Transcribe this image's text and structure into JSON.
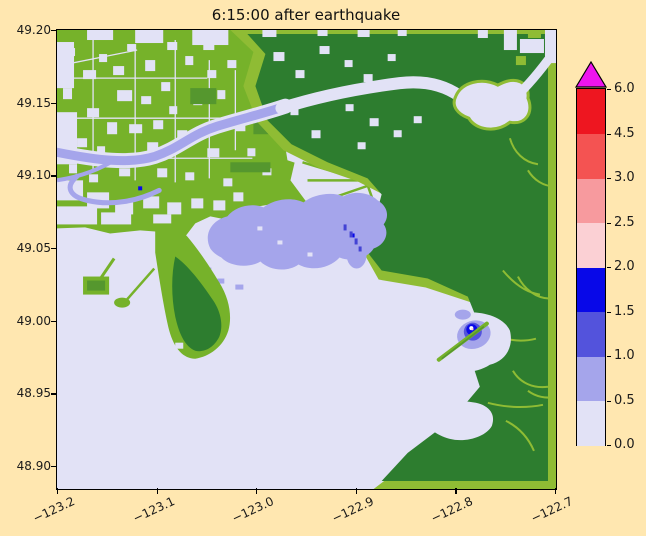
{
  "figure": {
    "title": "6:15:00 after earthquake",
    "background_color": "#ffe7b0"
  },
  "chart_data": {
    "type": "heatmap",
    "title": "6:15:00 after earthquake",
    "xlabel": "",
    "ylabel": "",
    "grid": false,
    "xlim": [
      -123.2,
      -122.7
    ],
    "ylim": [
      48.885,
      49.2
    ],
    "x_ticks": {
      "values": [
        -123.2,
        -123.1,
        -123.0,
        -122.9,
        -122.8,
        -122.7
      ],
      "labels": [
        "−123.2",
        "−123.1",
        "−123.0",
        "−122.9",
        "−122.8",
        "−122.7"
      ]
    },
    "y_ticks": {
      "values": [
        49.2,
        49.15,
        49.1,
        49.05,
        49.0,
        48.95,
        48.9
      ],
      "labels": [
        "49.20",
        "49.15",
        "49.10",
        "49.05",
        "49.00",
        "48.95",
        "48.90"
      ]
    },
    "colorbar": {
      "orientation": "vertical",
      "position": "right",
      "extend": "max",
      "boundaries": [
        0.0,
        0.5,
        1.0,
        1.5,
        2.0,
        2.5,
        3.0,
        4.5,
        6.0
      ],
      "tick_labels": [
        "0.0",
        "0.5",
        "1.0",
        "1.5",
        "2.0",
        "2.5",
        "3.0",
        "4.5",
        "6.0"
      ],
      "segment_colors": [
        "#e2e2f6",
        "#a5a5eb",
        "#5353dc",
        "#0808e8",
        "#fbd0d4",
        "#f79a9e",
        "#f45352",
        "#ee1620"
      ],
      "over_color": "#ee14ee"
    },
    "map_colors": {
      "water_amplitude_low": "#e2e2f6",
      "water_amplitude_mid": "#a5a5eb",
      "water_amplitude_high": "#0808e8",
      "land_lowland": "#76b22a",
      "land_fringe": "#8fbc34",
      "land_highland": "#2d7d2f"
    }
  }
}
